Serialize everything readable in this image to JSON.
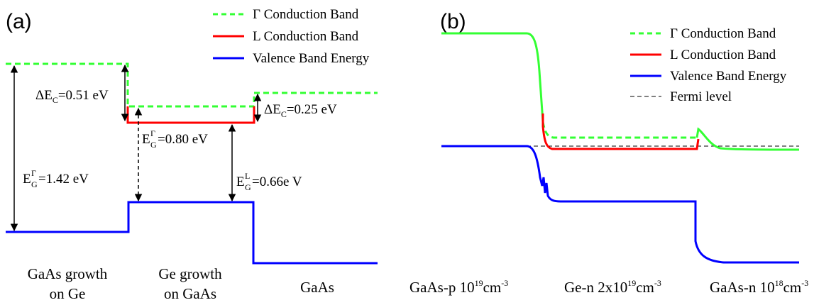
{
  "panel_a": {
    "letter": "(a)",
    "legend": [
      {
        "label": "Γ Conduction Band",
        "color": "#33ff33",
        "style": "dashed"
      },
      {
        "label": "L Conduction Band",
        "color": "#ff0000",
        "style": "solid"
      },
      {
        "label": "Valence Band Energy",
        "color": "#0000ff",
        "style": "solid"
      }
    ],
    "annotations": {
      "dEc_left": {
        "prefix": "ΔE",
        "sub": "C",
        "value": "=0.51 eV"
      },
      "dEc_right": {
        "prefix": "ΔE",
        "sub": "C",
        "value": "=0.25 eV"
      },
      "eg_gamma_ge": {
        "prefix": "E",
        "sup": "Γ",
        "sub": "G",
        "value": "=0.80 eV"
      },
      "eg_gaas": {
        "prefix": "E",
        "sup": "Γ",
        "sub": "G",
        "value": "=1.42 eV"
      },
      "eg_l_ge": {
        "prefix": "E",
        "sup": "L",
        "sub": "G",
        "value": "=0.66e V"
      }
    },
    "regions": [
      {
        "line1": "GaAs growth",
        "line2": "on Ge"
      },
      {
        "line1": "Ge growth",
        "line2": "on GaAs"
      },
      {
        "line1": "GaAs",
        "line2": ""
      }
    ]
  },
  "panel_b": {
    "letter": "(b)",
    "legend": [
      {
        "label": "Γ Conduction Band",
        "color": "#33ff33",
        "style": "dashed"
      },
      {
        "label": "L Conduction Band",
        "color": "#ff0000",
        "style": "solid"
      },
      {
        "label": "Valence Band Energy",
        "color": "#0000ff",
        "style": "solid"
      },
      {
        "label": "Fermi level",
        "color": "#000000",
        "style": "dashed"
      }
    ],
    "regions": [
      {
        "base": "GaAs-p 10",
        "exp": "19",
        "unit": "cm",
        "unit_exp": "-3"
      },
      {
        "base": "Ge-n 2x10",
        "exp": "19",
        "unit": "cm",
        "unit_exp": "-3"
      },
      {
        "base": "GaAs-n 10",
        "exp": "18",
        "unit": "cm",
        "unit_exp": "-3"
      }
    ]
  }
}
